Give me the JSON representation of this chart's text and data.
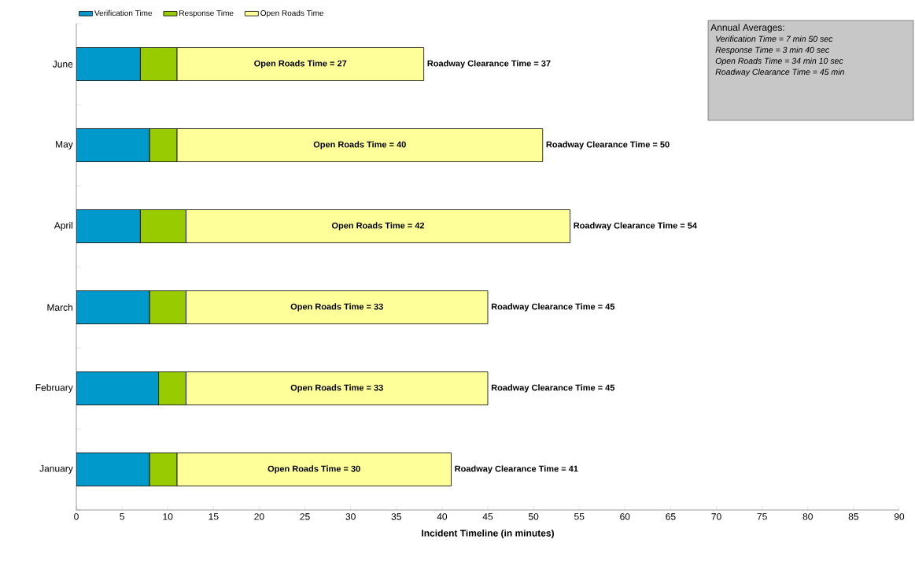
{
  "chart_data": {
    "type": "bar",
    "orientation": "horizontal",
    "stacked": true,
    "xlabel": "Incident Timeline (in minutes)",
    "categories": [
      "June",
      "May",
      "April",
      "March",
      "February",
      "January"
    ],
    "series": [
      {
        "name": "Verification Time",
        "color": "#0099cc",
        "values": [
          7,
          8,
          7,
          8,
          9,
          8
        ]
      },
      {
        "name": "Response Time",
        "color": "#99cc00",
        "values": [
          4,
          3,
          5,
          4,
          3,
          3
        ]
      },
      {
        "name": "Open Roads Time",
        "color": "#ffff99",
        "values": [
          27,
          40,
          42,
          33,
          33,
          30
        ],
        "value_labels": [
          "Open Roads Time = 27",
          "Open Roads Time = 40",
          "Open Roads Time = 42",
          "Open Roads Time = 33",
          "Open Roads Time = 33",
          "Open Roads Time = 30"
        ]
      }
    ],
    "totals": [
      "Roadway Clearance Time = 37",
      "Roadway Clearance Time = 50",
      "Roadway Clearance Time = 54",
      "Roadway Clearance Time = 45",
      "Roadway Clearance Time = 45",
      "Roadway Clearance Time = 41"
    ],
    "xlim": [
      0,
      90
    ],
    "xticks": [
      0,
      5,
      10,
      15,
      20,
      25,
      30,
      35,
      40,
      45,
      50,
      55,
      60,
      65,
      70,
      75,
      80,
      85,
      90
    ],
    "grid": false,
    "legend": "top",
    "annotations": [
      "Annual Averages:",
      "Verification Time = 7 min 50 sec",
      "Response Time =  3 min 40 sec",
      "Open Roads Time =  34 min 10 sec",
      "Roadway Clearance Time =  45 min"
    ]
  }
}
